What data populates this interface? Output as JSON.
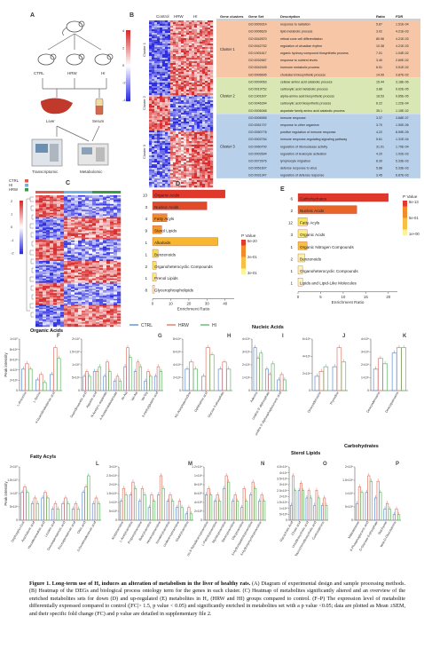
{
  "panel_letters": [
    "A",
    "B",
    "C",
    "D",
    "E",
    "F",
    "G",
    "H",
    "I",
    "J",
    "K",
    "L",
    "M",
    "N",
    "O",
    "P"
  ],
  "panel_a": {
    "groups": [
      "CTRL",
      "HRW",
      "HI"
    ],
    "tissues": [
      "Liver",
      "Serum"
    ],
    "assays": [
      "Transcriptomic",
      "Metabolomic"
    ]
  },
  "panel_b": {
    "groups": [
      "Control",
      "HRW",
      "HI"
    ],
    "clusters": [
      "Cluster 1",
      "Cluster 2",
      "Cluster 3"
    ],
    "scale_ticks": [
      "4",
      "2",
      "0",
      "-2",
      "-4"
    ]
  },
  "panel_c": {
    "legend": [
      "CTRL",
      "HI",
      "HRW"
    ],
    "scale_ticks": [
      "2",
      "1",
      "0",
      "-1",
      "-2"
    ]
  },
  "go_table": {
    "headers": [
      "Gene clusters",
      "Gene Set",
      "Description",
      "Ratio",
      "FDR"
    ],
    "clusters": [
      {
        "name": "Cluster 1",
        "color": "#f6c6a6",
        "rows": [
          [
            "GO:0009314",
            "response to radiation",
            "5.87",
            "1.51E-04"
          ],
          [
            "GO:0006629",
            "lipid metabolic process",
            "3.02",
            "4.21E-03"
          ],
          [
            "GO:0042670",
            "retinal cone cell differentiation",
            "80.96",
            "4.21E-03"
          ],
          [
            "GO:0042752",
            "regulation of circadian rhythm",
            "10.38",
            "4.21E-03"
          ],
          [
            "GO:1901617",
            "organic hydroxy compound biosynthetic process",
            "7.01",
            "1.04E-02"
          ],
          [
            "GO:0032667",
            "response to nutrient levels",
            "3.40",
            "2.60E-02"
          ],
          [
            "GO:0042445",
            "hormone metabolic process",
            "6.51",
            "3.51E-02"
          ],
          [
            "GO:0006695",
            "cholesterol biosynthetic process",
            "14.99",
            "3.87E-02"
          ]
        ]
      },
      {
        "name": "Cluster 2",
        "color": "#d9e7b4",
        "rows": [
          [
            "GO:0009063",
            "cellular amino acid catabolic process",
            "15.44",
            "3.18E-06"
          ],
          [
            "GO:0019752",
            "carboxylic acid metabolic process",
            "3.88",
            "9.02E-05"
          ],
          [
            "GO:1901607",
            "alpha-amino acid biosynthetic process",
            "18.53",
            "9.65E-05"
          ],
          [
            "GO:0046394",
            "carboxylic acid biosynthetic process",
            "6.22",
            "1.22E-04"
          ],
          [
            "GO:0006068",
            "aspartate family amino acid catabolic process",
            "35.1",
            "1.15E-02"
          ]
        ]
      },
      {
        "name": "Cluster 3",
        "color": "#b9d0ea",
        "rows": [
          [
            "GO:0006955",
            "immune response",
            "3.37",
            "3.68E-07"
          ],
          [
            "GO:0051707",
            "response to other organism",
            "3.70",
            "1.50E-06"
          ],
          [
            "GO:0050778",
            "positive regulation of immune response",
            "4.22",
            "8.59E-05"
          ],
          [
            "GO:0002764",
            "immune response-regulating signaling pathway",
            "5.61",
            "1.31E-04"
          ],
          [
            "GO:0060700",
            "regulation of ribonuclease activity",
            "31.91",
            "1.70E-04"
          ],
          [
            "GO:0002694",
            "regulation of leukocyte activation",
            "4.20",
            "1.02E-03"
          ],
          [
            "GO:0072676",
            "lymphocyte migration",
            "8.30",
            "5.33E-03"
          ],
          [
            "GO:0051607",
            "defense response to virus",
            "5.88",
            "5.33E-03"
          ],
          [
            "GO:0031347",
            "regulation of defense response",
            "3.45",
            "6.87E-03"
          ]
        ]
      }
    ]
  },
  "chart_data": [
    {
      "panel": "D",
      "type": "bar",
      "orientation": "horizontal",
      "categories": [
        "Organic Acids",
        "Nucleic Acids",
        "Fatty Acyls",
        "Sterol Lipids",
        "Alkaloids",
        "Benzenoids",
        "Organoheterocyclic Compounds",
        "Prenol Lipids",
        "Glycerophospholipids"
      ],
      "counts": [
        "13",
        "3",
        "4",
        "9",
        "1",
        "1",
        "2",
        "1",
        "8"
      ],
      "values": [
        40,
        30,
        8,
        5,
        36,
        3,
        2,
        2,
        1
      ],
      "colors": [
        "#e0392b",
        "#e04a2a",
        "#f08a2a",
        "#f29a2a",
        "#f7b733",
        "#f7e14a",
        "#f7e860",
        "#f9ef80",
        "#fbf6b8"
      ],
      "xlabel": "Enrichment Ratio",
      "xticks": [
        "0",
        "10",
        "20",
        "30",
        "40"
      ],
      "xlim": [
        0,
        45
      ],
      "legend_title": "P Value",
      "legend_ticks": [
        "6e-20",
        "2e-01",
        "3e-01"
      ]
    },
    {
      "panel": "E",
      "type": "bar",
      "orientation": "horizontal",
      "categories": [
        "Carbohydrates",
        "Nucleic Acids",
        "Fatty Acyls",
        "Organic Acids",
        "Organic Nitrogen Compounds",
        "Benzenoids",
        "Organoheterocyclic Compounds",
        "Lipids and Lipid-Like Molecules"
      ],
      "counts": [
        "6",
        "2",
        "12",
        "3",
        "1",
        "2",
        "1",
        "1"
      ],
      "values": [
        20,
        13,
        2,
        2,
        2,
        1.5,
        1,
        1
      ],
      "colors": [
        "#e0392b",
        "#e8652a",
        "#f7e860",
        "#f9ef80",
        "#f7c040",
        "#fbf4a8",
        "#fbf6b8",
        "#fcf8c8"
      ],
      "xlabel": "Enrichment Ratio",
      "xticks": [
        "0",
        "5",
        "10",
        "15",
        "20"
      ],
      "xlim": [
        0,
        22
      ],
      "legend_title": "P Value",
      "legend_ticks": [
        "8e-13",
        "5e-01",
        "1e+00"
      ]
    },
    {
      "panel": "F-P",
      "type": "bar",
      "grouped": true,
      "series": [
        {
          "name": "CTRL",
          "color": "#5f8fd6"
        },
        {
          "name": "HRW",
          "color": "#e07a6a"
        },
        {
          "name": "HI",
          "color": "#63b86a"
        }
      ],
      "ylabel": "Peak intensity",
      "groups": [
        {
          "section": "Organic Acids",
          "panel": "F",
          "yticks": [
            "0",
            "2×10⁶",
            "4×10⁶",
            "6×10⁶",
            "8×10⁶",
            "1×10⁷"
          ],
          "categories": [
            "L-threonine",
            "L-Serine",
            "4-Guanidinobutanoic acid"
          ],
          "values": [
            [
              4,
              5,
              4
            ],
            [
              2,
              3,
              1.5
            ],
            [
              3,
              8,
              6
            ]
          ]
        },
        {
          "panel": "G",
          "yticks": [
            "0",
            "5×10⁶",
            "1×10⁷",
            "1.5×10⁷",
            "2×10⁷"
          ],
          "categories": [
            "Guanidinoacetic acid",
            "Aspartic acid",
            "N-Acetyl-L-aspartate",
            "4-Acetamidobutanoate",
            "Ile-Ala",
            "Val-Ala",
            "Val-Gly",
            "3-methylglutaric acid"
          ],
          "values": [
            [
              3,
              4,
              3
            ],
            [
              4,
              4,
              5
            ],
            [
              3,
              6,
              4
            ],
            [
              2,
              3,
              2
            ],
            [
              5,
              9,
              7
            ],
            [
              4,
              6,
              5
            ],
            [
              2,
              4,
              3
            ],
            [
              3,
              5,
              4
            ]
          ]
        },
        {
          "panel": "H",
          "yticks": [
            "0",
            "2×10⁶",
            "4×10⁶",
            "6×10⁶",
            "8×10⁶"
          ],
          "categories": [
            "N1-Acetylspermidine",
            "Ophthalmic acid",
            "Glycine-3-phosphate"
          ],
          "values": [
            [
              3,
              4,
              3
            ],
            [
              2,
              6,
              5
            ],
            [
              3,
              4,
              3
            ]
          ]
        },
        {
          "section": "Nucleic Acids",
          "panel": "I",
          "yticks": [
            "0",
            "1×10⁶",
            "2×10⁶",
            "3×10⁶",
            "4×10⁶"
          ],
          "categories": [
            "Adenine",
            "Uridine 5'-diphosphate",
            "uridine 5'-diphosphoglucuronic acid"
          ],
          "values": [
            [
              8,
              6,
              7
            ],
            [
              4,
              3,
              5
            ],
            [
              2,
              3,
              2
            ]
          ]
        },
        {
          "panel": "J",
          "yticks": [
            "0",
            "2×10⁶",
            "4×10⁶",
            "6×10⁶"
          ],
          "categories": [
            "Deoxyadenosine",
            "Thymidine"
          ],
          "values": [
            [
              3,
              4,
              5
            ],
            [
              5,
              9,
              6
            ]
          ]
        },
        {
          "panel": "K",
          "yticks": [
            "0",
            "1×10⁶",
            "2×10⁶",
            "3×10⁶",
            "4×10⁶"
          ],
          "categories": [
            "Deoxyadenosine",
            "Deoxyguanosine"
          ],
          "values": [
            [
              4,
              6,
              5
            ],
            [
              7,
              8,
              8
            ]
          ]
        },
        {
          "section": "Fatty Acyls",
          "panel": "L",
          "yticks": [
            "0",
            "5×10⁶",
            "1×10⁷",
            "1.5×10⁷",
            "2×10⁷"
          ],
          "categories": [
            "Dephospho-CoA",
            "Arachidonic acid",
            "Hexadecanedioic acid",
            "Linoleic acid",
            "Docosapentaenoic acid",
            "Eicosapentaenoic acid",
            "Oleic acid",
            "3-Oxotetradecanoic acid"
          ],
          "values": [
            [
              5,
              6,
              5
            ],
            [
              3,
              4,
              3
            ],
            [
              4,
              5,
              4
            ],
            [
              2,
              3,
              2
            ],
            [
              3,
              4,
              3
            ],
            [
              2,
              3,
              2
            ],
            [
              5,
              6,
              8
            ],
            [
              3,
              4,
              3
            ]
          ]
        },
        {
          "panel": "M",
          "yticks": [
            "0",
            "5×10⁵",
            "1×10⁶",
            "1.5×10⁶",
            "2×10⁶",
            "2.5×10⁶",
            "3×10⁶"
          ],
          "categories": [
            "Acetylcarnitine",
            "L-Acetylcarnitine",
            "Propionylcarnitine",
            "Butyrylcarnitine",
            "Hexanoylcarnitine",
            "Isovalerylcarnitine",
            "Undecenoylcarnitine",
            "Glutarylcarnitine"
          ],
          "values": [
            [
              3,
              5,
              4
            ],
            [
              4,
              6,
              5
            ],
            [
              3,
              5,
              4
            ],
            [
              2,
              4,
              3
            ],
            [
              4,
              7,
              5
            ],
            [
              3,
              4,
              3
            ],
            [
              2,
              3,
              2
            ],
            [
              1,
              2,
              1
            ]
          ]
        },
        {
          "panel": "N",
          "yticks": [
            "0",
            "2×10⁵",
            "4×10⁵",
            "6×10⁵",
            "8×10⁵",
            "1×10⁶",
            "1.2×10⁶"
          ],
          "categories": [
            "cis-5-Tetradecenoylcarnitine",
            "L-Palmitoylcarnitine",
            "Myristoylcarnitine",
            "Stearoylcarnitine",
            "Oleoylcarnitine",
            "3-Hydroxypalmitoylcarnitine",
            "3-Hydroxymyristoylcarnitine"
          ],
          "values": [
            [
              4,
              5,
              4
            ],
            [
              3,
              4,
              3
            ],
            [
              5,
              7,
              6
            ],
            [
              3,
              4,
              3
            ],
            [
              2,
              5,
              3
            ],
            [
              4,
              6,
              5
            ],
            [
              3,
              4,
              3
            ]
          ]
        },
        {
          "section": "Sterol Lipids",
          "panel": "O",
          "yticks": [
            "0",
            "5×10⁵",
            "1×10⁶",
            "1.5×10⁶",
            "2×10⁶",
            "2.5×10⁶",
            "3×10⁶",
            "3.5×10⁶",
            "4×10⁶",
            "4.5×10⁶"
          ],
          "categories": [
            "Glycocholic Acid",
            "Cholic acid",
            "Ursodeoxycholic acid",
            "Taurochenodeoxycholic acid",
            "Corticosterone"
          ],
          "values": [
            [
              2,
              6,
              4
            ],
            [
              4,
              5,
              4
            ],
            [
              3,
              4,
              3
            ],
            [
              2,
              4,
              3
            ],
            [
              2,
              3,
              2
            ]
          ]
        },
        {
          "section": "Carbohydrates",
          "panel": "P",
          "yticks": [
            "0",
            "5×10⁵",
            "1×10⁶",
            "1.5×10⁶",
            "2×10⁶"
          ],
          "categories": [
            "Maltotetraose",
            "6-Phosphogluconic acid",
            "D-Glucose-6-phosphate",
            "Stachyose",
            "beta-D-Glucosamine"
          ],
          "values": [
            [
              3,
              6,
              5
            ],
            [
              5,
              8,
              7
            ],
            [
              4,
              7,
              5
            ],
            [
              2,
              3,
              2
            ],
            [
              1,
              2,
              1
            ]
          ]
        }
      ]
    }
  ],
  "caption": {
    "label": "Figure 1.",
    "title": "Long-term use of H₂ induces an alteration of metabolism in the liver of healthy rats.",
    "body": " (A) Diagram of experimental design and sample processing methods. (B) Heatmap of the DEGs and biological process ontology term for the genes in each cluster. (C) Heatmap of metabolites significantly altered and an overview of the enriched metabolites sets for down (D) and up-regulated (E) metabolites in H₂ (HRW and HI) groups compared to control. (F–P) The expression level of metabolite differentially expressed compared to control (|FC|> 1.5, p value < 0.05) and significantly enriched in metabolites set with a p value <0.05; data are plotted as Mean ±SEM, and their specific fold change (FC) and p value are detailed in supplementary file 2."
  }
}
